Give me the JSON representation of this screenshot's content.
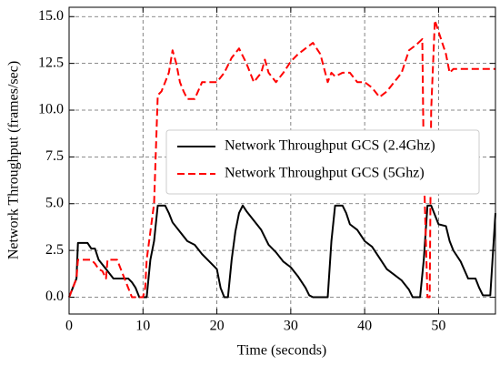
{
  "chart_data": {
    "type": "line",
    "xlabel": "Time (seconds)",
    "ylabel": "Network Throughput (frames/sec)",
    "xlim": [
      0,
      57.7
    ],
    "xticks": [
      0,
      10,
      20,
      30,
      40,
      50
    ],
    "ylim": [
      -0.9,
      15.5
    ],
    "yticks": [
      {
        "value": 0,
        "label": "0.0"
      },
      2.5,
      {
        "value": 5,
        "label": "5.0"
      },
      7.5,
      {
        "value": 10,
        "label": "10.0"
      },
      12.5,
      {
        "value": 15,
        "label": "15.0"
      }
    ],
    "grid": true,
    "legend": "center right",
    "series": [
      {
        "name": "Network Throughput GCS (2.4Ghz)",
        "color": "#000000",
        "dash": "solid",
        "x": [
          0,
          0.5,
          1,
          1.2,
          2.5,
          3,
          3.5,
          4,
          5,
          6,
          8,
          8.5,
          9,
          9.5,
          10.5,
          11,
          11.5,
          12,
          13,
          13.5,
          14,
          15,
          16,
          17,
          18,
          19,
          20,
          20.5,
          21,
          21.5,
          22,
          22.5,
          23,
          23.5,
          24,
          25,
          26,
          27,
          28,
          29,
          30,
          31,
          32,
          32.5,
          33,
          35,
          35.5,
          36,
          37,
          37.5,
          38,
          39,
          40,
          41,
          42,
          43,
          44,
          45,
          46,
          46.5,
          47.5,
          48,
          48.5,
          49,
          49.5,
          50,
          51,
          51.5,
          52,
          53,
          54,
          55,
          55.5,
          56,
          57,
          57.7
        ],
        "values": [
          0,
          0.5,
          1,
          2.9,
          2.9,
          2.6,
          2.6,
          2,
          1.5,
          1,
          1,
          0.8,
          0.5,
          0,
          0,
          2,
          3,
          4.9,
          4.9,
          4.5,
          4,
          3.5,
          3,
          2.8,
          2.3,
          1.9,
          1.5,
          0.5,
          0,
          0,
          2,
          3.5,
          4.5,
          4.9,
          4.6,
          4.1,
          3.6,
          2.8,
          2.4,
          1.9,
          1.6,
          1.1,
          0.5,
          0.1,
          0,
          0,
          3,
          4.9,
          4.9,
          4.5,
          3.9,
          3.6,
          3,
          2.7,
          2.1,
          1.5,
          1.2,
          0.9,
          0.4,
          0,
          0,
          2,
          4.9,
          4.9,
          4.4,
          3.9,
          3.8,
          3,
          2.5,
          1.9,
          1,
          1,
          0.5,
          0.1,
          0.1,
          4.5
        ]
      },
      {
        "name": "Network Throughput GCS (5Ghz)",
        "color": "#ff0000",
        "dash": "dashed",
        "x": [
          0,
          0.5,
          1,
          1.2,
          3,
          3.5,
          4,
          4.5,
          5,
          5.2,
          6.5,
          7,
          7.5,
          8,
          8.5,
          10,
          10.3,
          10.5,
          11,
          11.5,
          12,
          12.5,
          13,
          13.5,
          14,
          14.5,
          15,
          15.5,
          16,
          17,
          18,
          19,
          20,
          21,
          22,
          23,
          24,
          25,
          26,
          26.5,
          27,
          28,
          29,
          30,
          31,
          32,
          33,
          34,
          35,
          35.5,
          36,
          37,
          38,
          39,
          40,
          41,
          42,
          43,
          44,
          45,
          46,
          47,
          47.8,
          48,
          48.5,
          48.8,
          49,
          49.5,
          50,
          51,
          51.5,
          52,
          57.7
        ],
        "values": [
          0,
          0.5,
          1,
          2,
          2,
          1.8,
          1.5,
          1.4,
          1,
          2,
          2,
          1.5,
          1,
          0.5,
          0,
          0,
          0.5,
          2,
          3.5,
          5,
          10.8,
          11,
          11.5,
          12,
          13.2,
          12.5,
          11.5,
          11,
          10.6,
          10.6,
          11.5,
          11.5,
          11.5,
          12,
          12.8,
          13.3,
          12.5,
          11.5,
          12,
          12.7,
          12,
          11.5,
          12,
          12.6,
          13,
          13.3,
          13.6,
          13,
          11.5,
          12,
          11.8,
          12,
          12,
          11.5,
          11.5,
          11.2,
          10.7,
          11,
          11.5,
          12,
          13.2,
          13.5,
          13.8,
          7,
          0,
          0,
          10,
          14.8,
          14.2,
          13,
          12,
          12.2,
          12.2
        ]
      }
    ]
  }
}
